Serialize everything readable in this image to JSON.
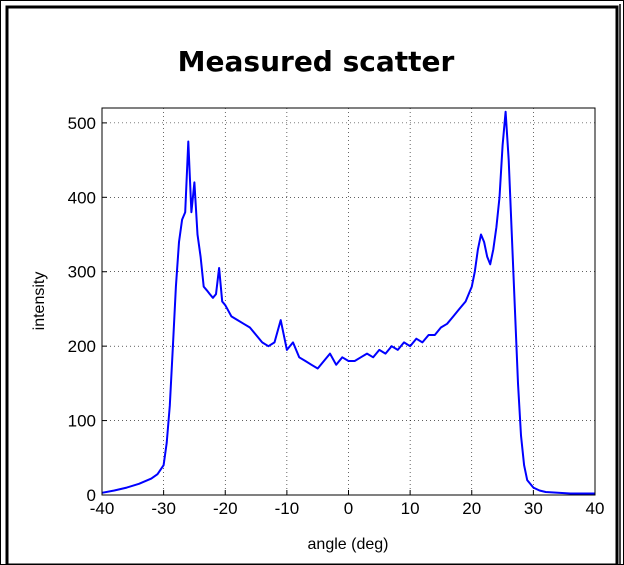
{
  "chart_data": {
    "type": "line",
    "title": "Measured scatter",
    "xlabel": "angle (deg)",
    "ylabel": "intensity",
    "xlim": [
      -40,
      40
    ],
    "ylim": [
      0,
      520
    ],
    "xticks": [
      -40,
      -30,
      -20,
      -10,
      0,
      10,
      20,
      30,
      40
    ],
    "yticks": [
      0,
      100,
      200,
      300,
      400,
      500
    ],
    "xtick_labels": [
      "-40",
      "-30",
      "-20",
      "-10",
      "0",
      "10",
      "20",
      "30",
      "40"
    ],
    "ytick_labels": [
      "0",
      "100",
      "200",
      "300",
      "400",
      "500"
    ],
    "grid": true,
    "line_color": "#0000ff",
    "series": [
      {
        "x": [
          -40,
          -38,
          -36,
          -34,
          -32,
          -31,
          -30,
          -29.5,
          -29,
          -28.5,
          -28,
          -27.5,
          -27,
          -26.5,
          -26,
          -25.5,
          -25,
          -24.5,
          -24,
          -23.5,
          -23,
          -22.5,
          -22,
          -21.5,
          -21,
          -20.5,
          -20,
          -19,
          -18,
          -17,
          -16,
          -15,
          -14,
          -13,
          -12,
          -11,
          -10,
          -9,
          -8,
          -7,
          -6,
          -5,
          -4,
          -3,
          -2,
          -1,
          0,
          1,
          2,
          3,
          4,
          5,
          6,
          7,
          8,
          9,
          10,
          11,
          12,
          13,
          14,
          15,
          16,
          17,
          18,
          19,
          20,
          20.5,
          21,
          21.5,
          22,
          22.5,
          23,
          23.5,
          24,
          24.5,
          25,
          25.5,
          26,
          26.5,
          27,
          27.5,
          28,
          28.5,
          29,
          30,
          31,
          32,
          34,
          36,
          38,
          40
        ],
        "y": [
          3,
          6,
          10,
          15,
          22,
          28,
          40,
          70,
          120,
          200,
          280,
          340,
          370,
          380,
          475,
          380,
          420,
          350,
          320,
          280,
          275,
          270,
          265,
          270,
          305,
          260,
          255,
          240,
          235,
          230,
          225,
          215,
          205,
          200,
          205,
          235,
          195,
          205,
          185,
          180,
          175,
          170,
          180,
          190,
          175,
          185,
          180,
          180,
          185,
          190,
          185,
          195,
          190,
          200,
          195,
          205,
          200,
          210,
          205,
          215,
          215,
          225,
          230,
          240,
          250,
          260,
          280,
          300,
          330,
          350,
          340,
          320,
          310,
          330,
          360,
          400,
          470,
          515,
          450,
          350,
          250,
          150,
          80,
          40,
          20,
          10,
          6,
          4,
          3,
          2,
          2,
          2
        ]
      }
    ]
  }
}
